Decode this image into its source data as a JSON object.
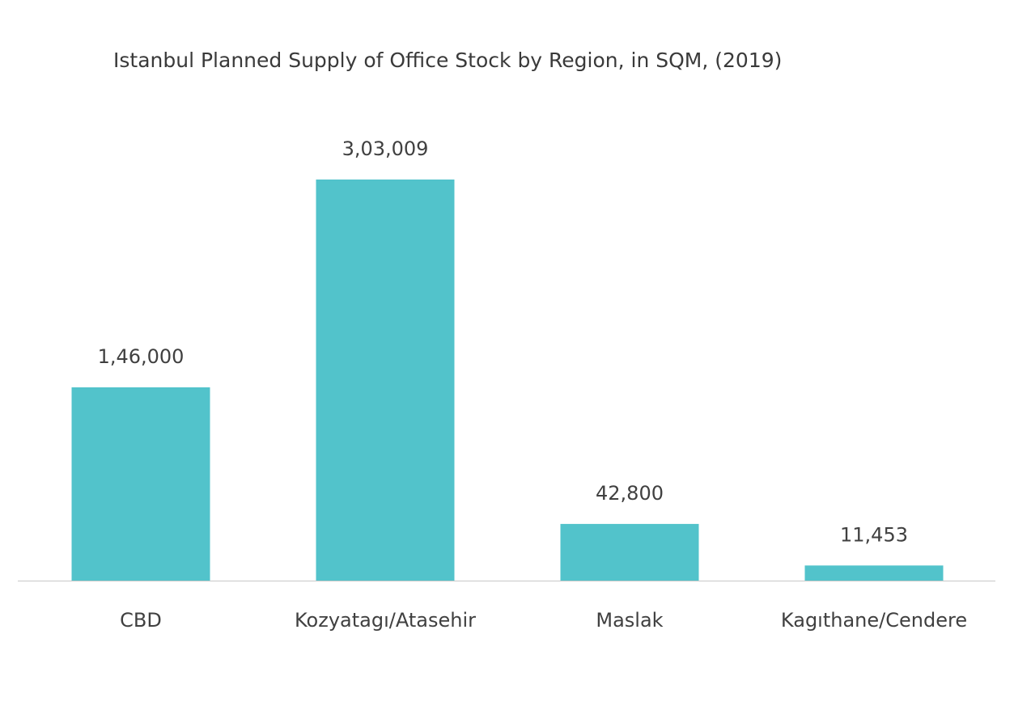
{
  "chart_data": {
    "type": "bar",
    "title": "Istanbul Planned Supply of  Office Stock by Region, in SQM, (2019)",
    "categories": [
      "CBD",
      "Kozyatagı/Atasehir",
      "Maslak",
      "Kagıthane/Cendere"
    ],
    "values": [
      146000,
      303009,
      42800,
      11453
    ],
    "value_labels": [
      "1,46,000",
      "3,03,009",
      "42,800",
      "11,453"
    ],
    "bar_color": "#52c3cb",
    "axis_color": "#c8c8c8",
    "xlabel": "",
    "ylabel": "",
    "grid": false,
    "legend": "none"
  }
}
